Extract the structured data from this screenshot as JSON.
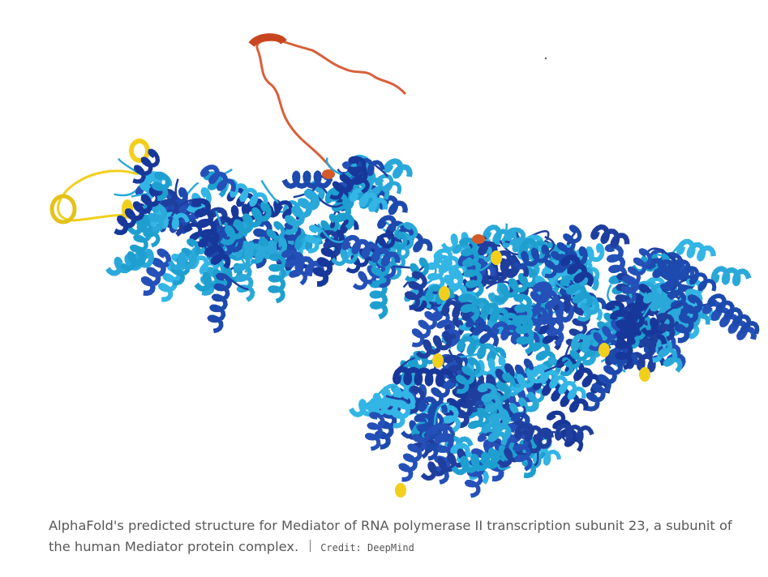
{
  "caption": {
    "text": "AlphaFold's predicted structure for Mediator of RNA polymerase II transcription subunit 23, a subunit of the human Mediator protein complex.",
    "credit": "Credit: DeepMind"
  }
}
